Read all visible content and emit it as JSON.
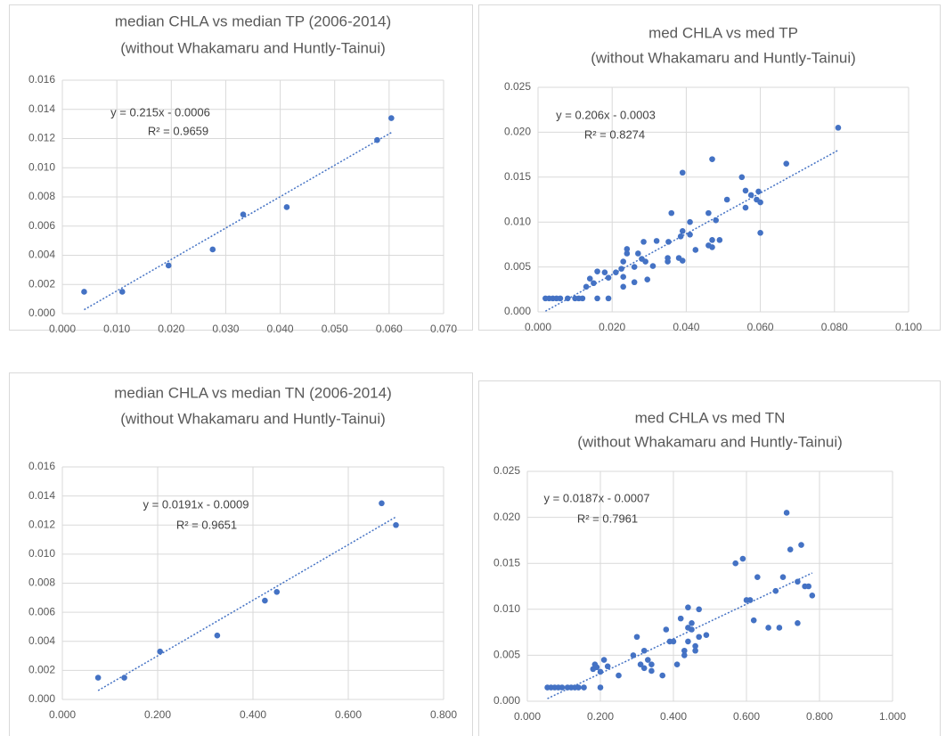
{
  "chart_data": [
    {
      "type": "scatter",
      "title": "median CHLA vs median TP (2006-2014)",
      "subtitle": "(without Whakamaru and Huntly-Tainui)",
      "annotations": [
        "y = 0.215x - 0.0006",
        "R² = 0.9659"
      ],
      "color": "#4472c4",
      "grid": true,
      "x": [
        0.004,
        0.011,
        0.0195,
        0.0276,
        0.0332,
        0.0412,
        0.0578,
        0.0604
      ],
      "values": [
        0.0015,
        0.0015,
        0.0033,
        0.0044,
        0.0068,
        0.0073,
        0.0119,
        0.0134
      ],
      "xlim": [
        0,
        0.07
      ],
      "ylim": [
        0,
        0.016
      ],
      "xticks": [
        {
          "value": 0,
          "label": "0.000"
        },
        {
          "value": 0.01,
          "label": "0.010"
        },
        {
          "value": 0.02,
          "label": "0.020"
        },
        {
          "value": 0.03,
          "label": "0.030"
        },
        {
          "value": 0.04,
          "label": "0.040"
        },
        {
          "value": 0.05,
          "label": "0.050"
        },
        {
          "value": 0.06,
          "label": "0.060"
        },
        {
          "value": 0.07,
          "label": "0.070"
        }
      ],
      "yticks": [
        {
          "value": 0,
          "label": "0.000"
        },
        {
          "value": 0.002,
          "label": "0.002"
        },
        {
          "value": 0.004,
          "label": "0.004"
        },
        {
          "value": 0.006,
          "label": "0.006"
        },
        {
          "value": 0.008,
          "label": "0.008"
        },
        {
          "value": 0.01,
          "label": "0.010"
        },
        {
          "value": 0.012,
          "label": "0.012"
        },
        {
          "value": 0.014,
          "label": "0.014"
        },
        {
          "value": 0.016,
          "label": "0.016"
        }
      ]
    },
    {
      "type": "scatter",
      "title": "med CHLA vs med TP",
      "subtitle": "(without Whakamaru and Huntly-Tainui)",
      "annotations": [
        "y = 0.206x - 0.0003",
        "R² = 0.8274"
      ],
      "color": "#4472c4",
      "grid": true,
      "x": [
        0.002,
        0.003,
        0.004,
        0.005,
        0.006,
        0.008,
        0.01,
        0.011,
        0.012,
        0.016,
        0.019,
        0.013,
        0.014,
        0.015,
        0.016,
        0.018,
        0.019,
        0.021,
        0.0225,
        0.023,
        0.024,
        0.024,
        0.023,
        0.023,
        0.026,
        0.026,
        0.027,
        0.028,
        0.0285,
        0.029,
        0.0295,
        0.031,
        0.032,
        0.035,
        0.035,
        0.0352,
        0.036,
        0.038,
        0.0385,
        0.039,
        0.039,
        0.039,
        0.041,
        0.041,
        0.0425,
        0.046,
        0.046,
        0.047,
        0.047,
        0.047,
        0.048,
        0.049,
        0.051,
        0.055,
        0.056,
        0.056,
        0.0575,
        0.059,
        0.0595,
        0.06,
        0.06,
        0.067,
        0.081
      ],
      "values": [
        0.0015,
        0.0015,
        0.0015,
        0.0015,
        0.0015,
        0.0015,
        0.0015,
        0.0015,
        0.0015,
        0.0015,
        0.0015,
        0.0028,
        0.0037,
        0.0032,
        0.0045,
        0.0044,
        0.0038,
        0.0044,
        0.0048,
        0.0056,
        0.0065,
        0.007,
        0.0028,
        0.0039,
        0.0033,
        0.005,
        0.0065,
        0.0059,
        0.0078,
        0.0056,
        0.0036,
        0.0051,
        0.0079,
        0.0056,
        0.006,
        0.0078,
        0.011,
        0.006,
        0.0084,
        0.0155,
        0.0057,
        0.009,
        0.0086,
        0.01,
        0.0069,
        0.0074,
        0.011,
        0.008,
        0.0072,
        0.017,
        0.0102,
        0.008,
        0.0125,
        0.015,
        0.0135,
        0.0116,
        0.013,
        0.0125,
        0.0134,
        0.0122,
        0.0088,
        0.0165,
        0.0205
      ],
      "xlim": [
        0,
        0.1
      ],
      "ylim": [
        0,
        0.025
      ],
      "xticks": [
        {
          "value": 0,
          "label": "0.000"
        },
        {
          "value": 0.02,
          "label": "0.020"
        },
        {
          "value": 0.04,
          "label": "0.040"
        },
        {
          "value": 0.06,
          "label": "0.060"
        },
        {
          "value": 0.08,
          "label": "0.080"
        },
        {
          "value": 0.1,
          "label": "0.100"
        }
      ],
      "yticks": [
        {
          "value": 0,
          "label": "0.000"
        },
        {
          "value": 0.005,
          "label": "0.005"
        },
        {
          "value": 0.01,
          "label": "0.010"
        },
        {
          "value": 0.015,
          "label": "0.015"
        },
        {
          "value": 0.02,
          "label": "0.020"
        },
        {
          "value": 0.025,
          "label": "0.025"
        }
      ]
    },
    {
      "type": "scatter",
      "title": "median CHLA vs median TN (2006-2014)",
      "subtitle": "(without Whakamaru and Huntly-Tainui)",
      "annotations": [
        "y = 0.0191x - 0.0009",
        "R² = 0.9651"
      ],
      "color": "#4472c4",
      "grid": true,
      "x": [
        0.075,
        0.13,
        0.205,
        0.325,
        0.425,
        0.45,
        0.67,
        0.7
      ],
      "values": [
        0.0015,
        0.0015,
        0.0033,
        0.0044,
        0.0068,
        0.0074,
        0.0135,
        0.012
      ],
      "xlim": [
        0,
        0.8
      ],
      "ylim": [
        0,
        0.016
      ],
      "xticks": [
        {
          "value": 0,
          "label": "0.000"
        },
        {
          "value": 0.2,
          "label": "0.200"
        },
        {
          "value": 0.4,
          "label": "0.400"
        },
        {
          "value": 0.6,
          "label": "0.600"
        },
        {
          "value": 0.8,
          "label": "0.800"
        }
      ],
      "yticks": [
        {
          "value": 0,
          "label": "0.000"
        },
        {
          "value": 0.002,
          "label": "0.002"
        },
        {
          "value": 0.004,
          "label": "0.004"
        },
        {
          "value": 0.006,
          "label": "0.006"
        },
        {
          "value": 0.008,
          "label": "0.008"
        },
        {
          "value": 0.01,
          "label": "0.010"
        },
        {
          "value": 0.012,
          "label": "0.012"
        },
        {
          "value": 0.014,
          "label": "0.014"
        },
        {
          "value": 0.016,
          "label": "0.016"
        }
      ]
    },
    {
      "type": "scatter",
      "title": "med CHLA vs med TN",
      "subtitle": "(without Whakamaru and Huntly-Tainui)",
      "annotations": [
        "y = 0.0187x - 0.0007",
        "R² = 0.7961"
      ],
      "color": "#4472c4",
      "grid": true,
      "x": [
        0.055,
        0.065,
        0.075,
        0.085,
        0.095,
        0.11,
        0.12,
        0.13,
        0.14,
        0.155,
        0.18,
        0.185,
        0.19,
        0.2,
        0.2,
        0.21,
        0.22,
        0.25,
        0.29,
        0.3,
        0.31,
        0.32,
        0.32,
        0.33,
        0.34,
        0.34,
        0.37,
        0.38,
        0.39,
        0.4,
        0.41,
        0.42,
        0.43,
        0.43,
        0.44,
        0.44,
        0.44,
        0.45,
        0.45,
        0.46,
        0.46,
        0.47,
        0.47,
        0.49,
        0.57,
        0.59,
        0.6,
        0.61,
        0.62,
        0.63,
        0.66,
        0.68,
        0.69,
        0.7,
        0.71,
        0.72,
        0.74,
        0.74,
        0.75,
        0.76,
        0.77,
        0.78
      ],
      "values": [
        0.0015,
        0.0015,
        0.0015,
        0.0015,
        0.0015,
        0.0015,
        0.0015,
        0.0015,
        0.0015,
        0.0015,
        0.0035,
        0.004,
        0.0037,
        0.0015,
        0.0032,
        0.0045,
        0.0038,
        0.0028,
        0.005,
        0.007,
        0.004,
        0.0055,
        0.0036,
        0.0045,
        0.004,
        0.0033,
        0.0028,
        0.0078,
        0.0065,
        0.0065,
        0.004,
        0.009,
        0.005,
        0.0055,
        0.0065,
        0.008,
        0.0102,
        0.0085,
        0.0078,
        0.006,
        0.0055,
        0.01,
        0.007,
        0.0072,
        0.015,
        0.0155,
        0.011,
        0.011,
        0.0088,
        0.0135,
        0.008,
        0.012,
        0.008,
        0.0135,
        0.0205,
        0.0165,
        0.013,
        0.0085,
        0.017,
        0.0125,
        0.0125,
        0.0115
      ],
      "xlim": [
        0,
        1
      ],
      "ylim": [
        0,
        0.025
      ],
      "xticks": [
        {
          "value": 0,
          "label": "0.000"
        },
        {
          "value": 0.2,
          "label": "0.200"
        },
        {
          "value": 0.4,
          "label": "0.400"
        },
        {
          "value": 0.6,
          "label": "0.600"
        },
        {
          "value": 0.8,
          "label": "0.800"
        },
        {
          "value": 1,
          "label": "1.000"
        }
      ],
      "yticks": [
        {
          "value": 0,
          "label": "0.000"
        },
        {
          "value": 0.005,
          "label": "0.005"
        },
        {
          "value": 0.01,
          "label": "0.010"
        },
        {
          "value": 0.015,
          "label": "0.015"
        },
        {
          "value": 0.02,
          "label": "0.020"
        },
        {
          "value": 0.025,
          "label": "0.025"
        }
      ]
    }
  ]
}
